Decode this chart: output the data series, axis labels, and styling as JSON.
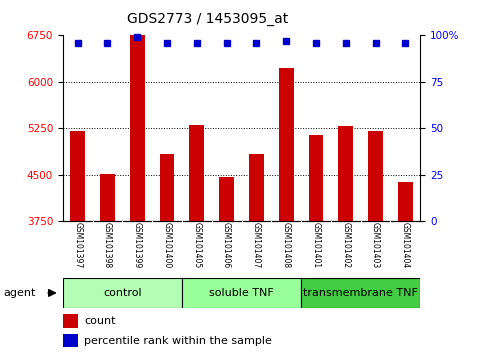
{
  "title": "GDS2773 / 1453095_at",
  "samples": [
    "GSM101397",
    "GSM101398",
    "GSM101399",
    "GSM101400",
    "GSM101405",
    "GSM101406",
    "GSM101407",
    "GSM101408",
    "GSM101401",
    "GSM101402",
    "GSM101403",
    "GSM101404"
  ],
  "counts": [
    5200,
    4520,
    6750,
    4830,
    5310,
    4460,
    4840,
    6220,
    5150,
    5290,
    5210,
    4390
  ],
  "percentiles": [
    96,
    96,
    99,
    96,
    96,
    96,
    96,
    97,
    96,
    96,
    96,
    96
  ],
  "ylim_left": [
    3750,
    6750
  ],
  "ylim_right": [
    0,
    100
  ],
  "yticks_left": [
    3750,
    4500,
    5250,
    6000,
    6750
  ],
  "yticks_right": [
    0,
    25,
    50,
    75,
    100
  ],
  "bar_color": "#cc0000",
  "dot_color": "#0000cc",
  "groups": [
    {
      "label": "control",
      "start": 0,
      "end": 4,
      "color": "#b3ffb3"
    },
    {
      "label": "soluble TNF",
      "start": 4,
      "end": 8,
      "color": "#99ff99"
    },
    {
      "label": "transmembrane TNF",
      "start": 8,
      "end": 12,
      "color": "#44cc44"
    }
  ],
  "agent_label": "agent",
  "legend_count_label": "count",
  "legend_percentile_label": "percentile rank within the sample",
  "tick_area_color": "#cccccc",
  "bar_width": 0.5
}
